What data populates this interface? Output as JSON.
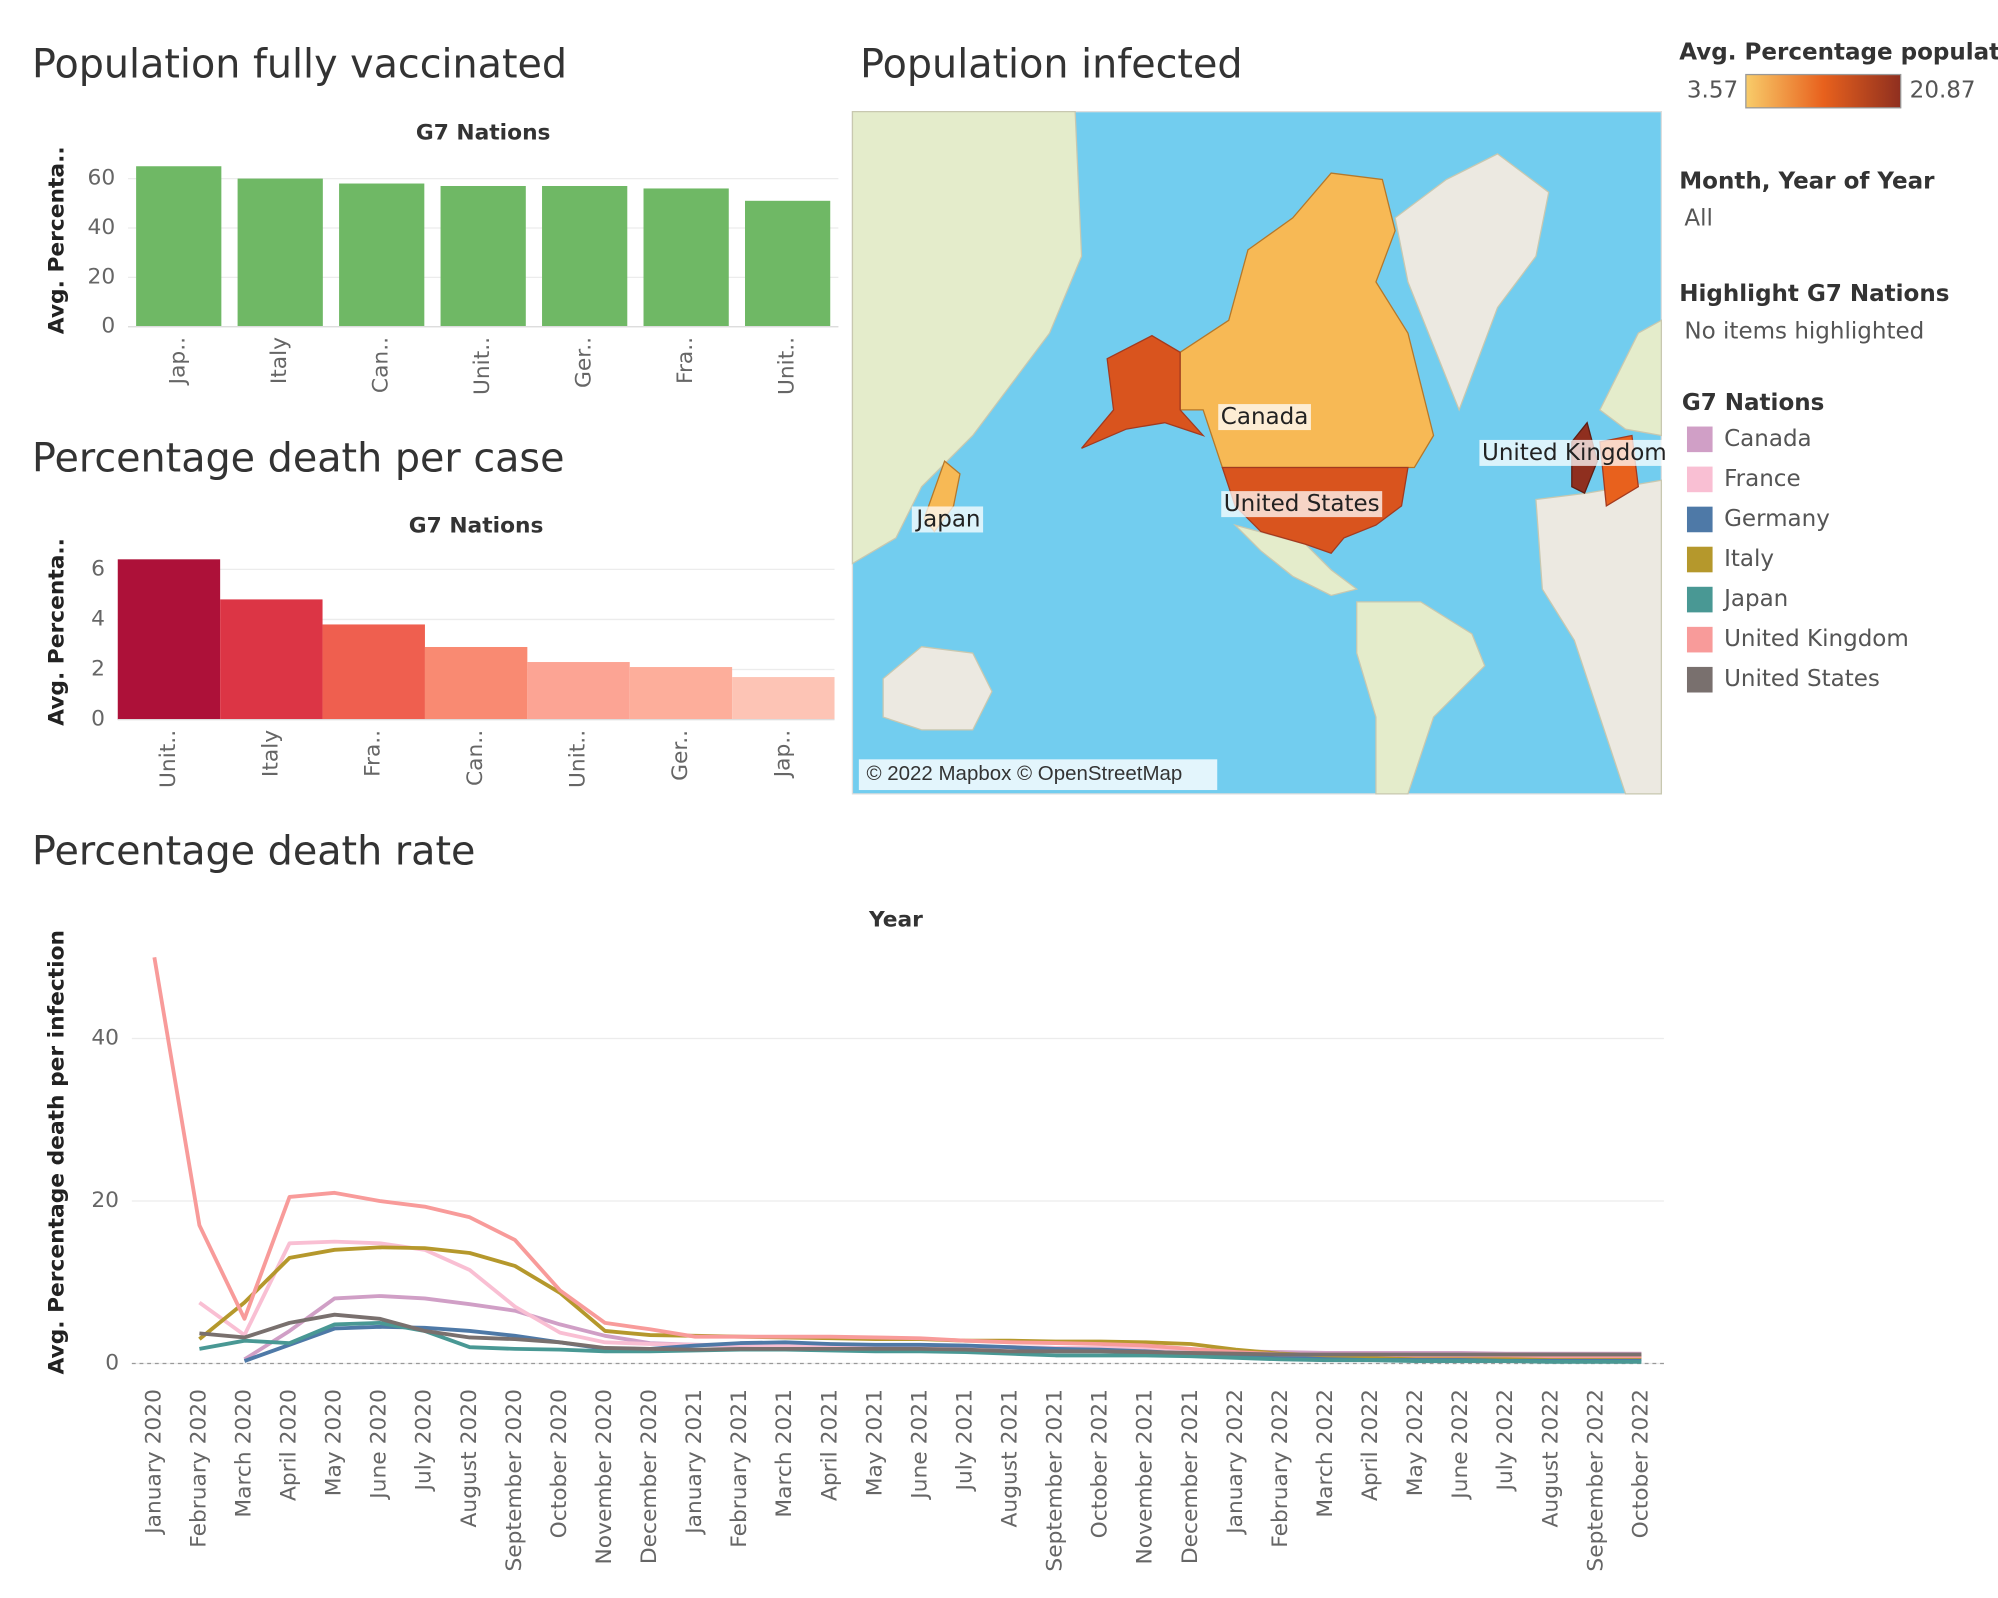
{
  "chart_data": [
    {
      "type": "bar",
      "title": "Population fully vaccinated",
      "subtitle": "G7 Nations",
      "y_label": "Avg. Percenta..",
      "categories": [
        "Jap..",
        "Italy",
        "Can..",
        "Unit..",
        "Ger..",
        "Fra..",
        "Unit.."
      ],
      "values": [
        65,
        60,
        58,
        57,
        57,
        56,
        51
      ],
      "color": "#6fb865",
      "ylim": [
        0,
        70
      ],
      "yticks": [
        0,
        20,
        40,
        60
      ],
      "grid": true
    },
    {
      "type": "bar",
      "title": "Percentage death per case",
      "subtitle": "G7 Nations",
      "y_label": "Avg. Percenta..",
      "categories": [
        "Unit..",
        "Italy",
        "Fra..",
        "Can..",
        "Unit..",
        "Ger..",
        "Jap.."
      ],
      "values": [
        6.4,
        4.8,
        3.8,
        2.9,
        2.3,
        2.1,
        1.7
      ],
      "colors": [
        "#ad1139",
        "#dc3545",
        "#ef5f4f",
        "#f98a72",
        "#fca494",
        "#fdae9b",
        "#fdc4b5"
      ],
      "ylim": [
        0,
        7
      ],
      "yticks": [
        0,
        2,
        4,
        6
      ],
      "grid": true
    },
    {
      "type": "line",
      "title": "Percentage death rate",
      "subtitle": "Year",
      "y_label": "Avg. Percentage death per infection",
      "legend_title": "G7 Nations",
      "categories": [
        "January 2020",
        "February 2020",
        "March 2020",
        "April 2020",
        "May 2020",
        "June 2020",
        "July 2020",
        "August 2020",
        "September 2020",
        "October 2020",
        "November 2020",
        "December 2020",
        "January 2021",
        "February 2021",
        "March 2021",
        "April 2021",
        "May 2021",
        "June 2021",
        "July 2021",
        "August 2021",
        "September 2021",
        "October 2021",
        "November 2021",
        "December 2021",
        "January 2022",
        "February 2022",
        "March 2022",
        "April 2022",
        "May 2022",
        "June 2022",
        "July 2022",
        "August 2022",
        "September 2022",
        "October 2022"
      ],
      "series": [
        {
          "name": "Canada",
          "color": "#d09fc6",
          "values": [
            null,
            null,
            0.5,
            4,
            8,
            8.3,
            8,
            7.3,
            6.5,
            4.8,
            3.4,
            2.5,
            2.3,
            2.2,
            2.2,
            2.1,
            2.1,
            2.0,
            2.0,
            2.0,
            1.9,
            1.9,
            1.8,
            1.7,
            1.5,
            1.4,
            1.3,
            1.3,
            1.3,
            1.3,
            1.2,
            1.2,
            1.2,
            1.2
          ]
        },
        {
          "name": "France",
          "color": "#f9bfd3",
          "values": [
            null,
            7.5,
            3.5,
            14.8,
            15,
            14.8,
            14,
            11.5,
            7,
            3.8,
            2.6,
            2.4,
            2.3,
            2.3,
            2.2,
            2.2,
            2.1,
            2.1,
            2.0,
            2.0,
            1.9,
            1.9,
            1.8,
            1.6,
            1.3,
            1.1,
            1.0,
            1.0,
            1.0,
            1.0,
            1.0,
            1.0,
            1.0,
            1.0
          ]
        },
        {
          "name": "Germany",
          "color": "#4e79a7",
          "values": [
            null,
            null,
            0.3,
            2.3,
            4.3,
            4.5,
            4.4,
            4,
            3.4,
            2.6,
            1.8,
            1.8,
            2.2,
            2.5,
            2.6,
            2.4,
            2.3,
            2.3,
            2.2,
            2.0,
            1.8,
            1.7,
            1.5,
            1.2,
            0.9,
            0.7,
            0.6,
            0.6,
            0.6,
            0.5,
            0.5,
            0.5,
            0.5,
            0.5
          ]
        },
        {
          "name": "Italy",
          "color": "#b5982c",
          "values": [
            null,
            3,
            7.5,
            13,
            14,
            14.3,
            14.2,
            13.6,
            12,
            8.7,
            4,
            3.5,
            3.4,
            3.3,
            3.2,
            3.1,
            3,
            3,
            2.8,
            2.8,
            2.7,
            2.7,
            2.6,
            2.4,
            1.7,
            1.2,
            1.0,
            0.9,
            0.9,
            0.9,
            0.8,
            0.8,
            0.8,
            0.8
          ]
        },
        {
          "name": "Japan",
          "color": "#499894",
          "values": [
            null,
            1.8,
            2.8,
            2.5,
            4.8,
            5,
            4,
            2,
            1.8,
            1.7,
            1.5,
            1.5,
            1.6,
            1.7,
            1.7,
            1.6,
            1.5,
            1.5,
            1.4,
            1.2,
            1.0,
            1.0,
            1.0,
            0.9,
            0.7,
            0.5,
            0.4,
            0.4,
            0.3,
            0.3,
            0.3,
            0.2,
            0.2,
            0.2
          ]
        },
        {
          "name": "United Kingdom",
          "color": "#f89b9a",
          "values": [
            50,
            17,
            5.5,
            20.5,
            21,
            20,
            19.3,
            18,
            15.2,
            9,
            5,
            4.2,
            3.3,
            3.3,
            3.3,
            3.3,
            3.2,
            3.1,
            2.8,
            2.6,
            2.5,
            2.4,
            2.2,
            1.8,
            1.4,
            1.1,
            1.1,
            1.1,
            1.0,
            1.0,
            1.0,
            0.9,
            0.9,
            0.9
          ]
        },
        {
          "name": "United States",
          "color": "#79706e",
          "values": [
            null,
            3.7,
            3.2,
            5,
            6,
            5.5,
            4,
            3.2,
            3,
            2.6,
            1.9,
            1.8,
            1.7,
            1.8,
            1.8,
            1.8,
            1.8,
            1.8,
            1.7,
            1.5,
            1.5,
            1.5,
            1.4,
            1.3,
            1.2,
            1.1,
            1.1,
            1.1,
            1.1,
            1.1,
            1.1,
            1.1,
            1.1,
            1.1
          ]
        }
      ],
      "ylim": [
        0,
        52
      ],
      "yticks": [
        0,
        20,
        40
      ],
      "grid": true
    }
  ],
  "map": {
    "title": "Population infected",
    "labels": [
      "Canada",
      "United States",
      "United Kingdom",
      "Japan"
    ],
    "attribution": "© 2022 Mapbox © OpenStreetMap",
    "color_legend": {
      "title": "Avg. Percentage populati..",
      "min": 3.57,
      "max": 20.87,
      "colors": [
        "#f8cc6a",
        "#e8611d",
        "#8f2f1f"
      ]
    }
  },
  "filters": [
    {
      "title": "Month, Year of Year",
      "value": "All"
    },
    {
      "title": "Highlight G7 Nations",
      "value": "No items highlighted"
    }
  ]
}
